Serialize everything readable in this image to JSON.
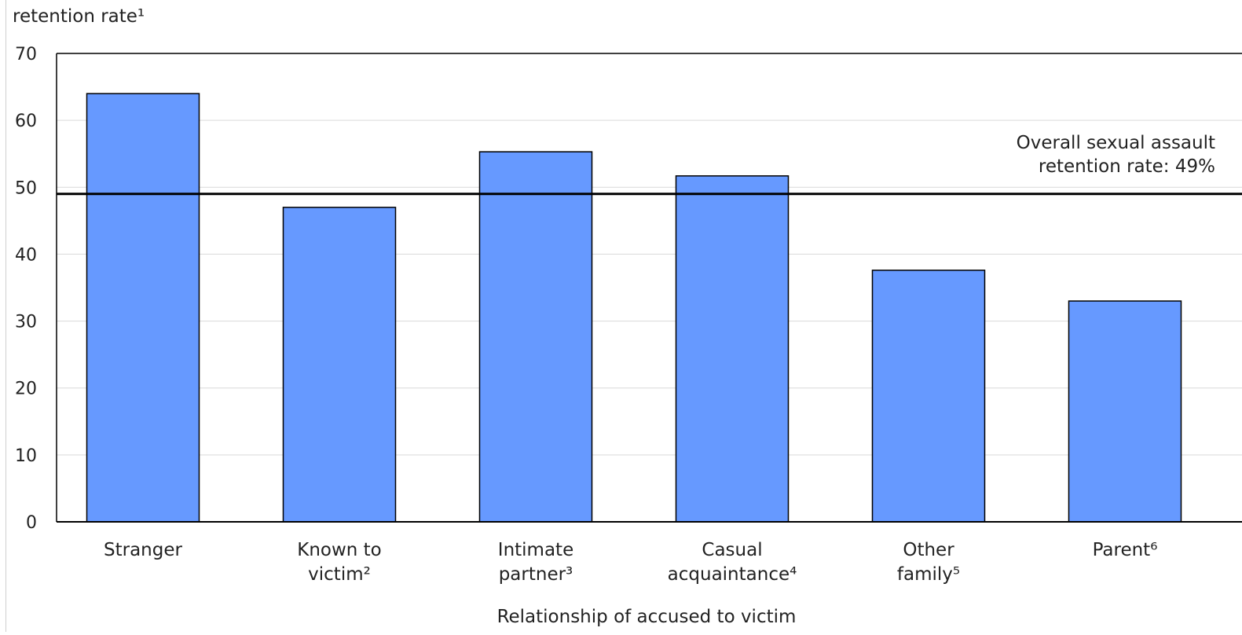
{
  "chart_data": {
    "type": "bar",
    "ylabel": "retention rate¹",
    "xlabel": "Relationship of accused to victim",
    "ylim": [
      0,
      70
    ],
    "yticks": [
      0,
      10,
      20,
      30,
      40,
      50,
      60,
      70
    ],
    "grid": "horizontal",
    "categories": [
      [
        "Stranger"
      ],
      [
        "Known to",
        "victim²"
      ],
      [
        "Intimate",
        "partner³"
      ],
      [
        "Casual",
        "acquaintance⁴"
      ],
      [
        "Other",
        "family⁵"
      ],
      [
        "Parent⁶"
      ]
    ],
    "values": [
      64,
      47,
      55.3,
      51.7,
      37.6,
      33
    ],
    "reference_line": {
      "value": 49,
      "label_lines": [
        "Overall sexual assault",
        "retention rate: 49%"
      ]
    }
  },
  "colors": {
    "bar_fill": "#6699ff",
    "bar_stroke": "#000000",
    "grid": "#d9d9d9",
    "axis": "#000000",
    "reference_line": "#000000",
    "text": "#222222"
  }
}
